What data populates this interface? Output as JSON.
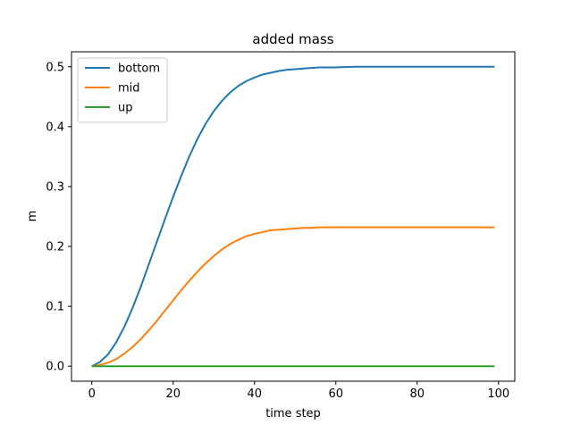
{
  "chart_data": {
    "type": "line",
    "title": "added mass",
    "xlabel": "time step",
    "ylabel": "m",
    "xlim": [
      -5,
      104
    ],
    "ylim": [
      -0.025,
      0.525
    ],
    "xticks": [
      0,
      20,
      40,
      60,
      80,
      100
    ],
    "xtick_labels": [
      "0",
      "20",
      "40",
      "60",
      "80",
      "100"
    ],
    "yticks": [
      0.0,
      0.1,
      0.2,
      0.3,
      0.4,
      0.5
    ],
    "ytick_labels": [
      "0.0",
      "0.1",
      "0.2",
      "0.3",
      "0.4",
      "0.5"
    ],
    "grid": false,
    "legend_position": "upper-left",
    "series": [
      {
        "name": "bottom",
        "color": "#1f77b4",
        "x": [
          0,
          2,
          4,
          6,
          8,
          10,
          12,
          14,
          16,
          18,
          20,
          22,
          24,
          26,
          28,
          30,
          32,
          34,
          36,
          38,
          40,
          42,
          44,
          46,
          48,
          50,
          52,
          54,
          56,
          58,
          60,
          65,
          70,
          75,
          80,
          85,
          90,
          95,
          99
        ],
        "y": [
          0.0,
          0.007,
          0.02,
          0.04,
          0.066,
          0.097,
          0.132,
          0.17,
          0.208,
          0.246,
          0.283,
          0.318,
          0.351,
          0.38,
          0.405,
          0.426,
          0.443,
          0.457,
          0.468,
          0.476,
          0.482,
          0.487,
          0.49,
          0.493,
          0.495,
          0.496,
          0.497,
          0.498,
          0.499,
          0.499,
          0.499,
          0.5,
          0.5,
          0.5,
          0.5,
          0.5,
          0.5,
          0.5,
          0.5
        ]
      },
      {
        "name": "mid",
        "color": "#ff7f0e",
        "x": [
          0,
          2,
          4,
          6,
          8,
          10,
          12,
          14,
          16,
          18,
          20,
          22,
          24,
          26,
          28,
          30,
          32,
          34,
          36,
          38,
          40,
          42,
          44,
          46,
          48,
          50,
          52,
          54,
          56,
          58,
          60,
          65,
          70,
          75,
          80,
          85,
          90,
          95,
          99
        ],
        "y": [
          0.0,
          0.002,
          0.006,
          0.012,
          0.021,
          0.032,
          0.045,
          0.06,
          0.076,
          0.093,
          0.11,
          0.127,
          0.143,
          0.158,
          0.172,
          0.184,
          0.195,
          0.204,
          0.211,
          0.217,
          0.221,
          0.224,
          0.227,
          0.228,
          0.229,
          0.23,
          0.231,
          0.231,
          0.232,
          0.232,
          0.232,
          0.232,
          0.232,
          0.232,
          0.232,
          0.232,
          0.232,
          0.232,
          0.232
        ]
      },
      {
        "name": "up",
        "color": "#2ca02c",
        "x": [
          0,
          99
        ],
        "y": [
          0.0,
          0.0
        ]
      }
    ]
  }
}
